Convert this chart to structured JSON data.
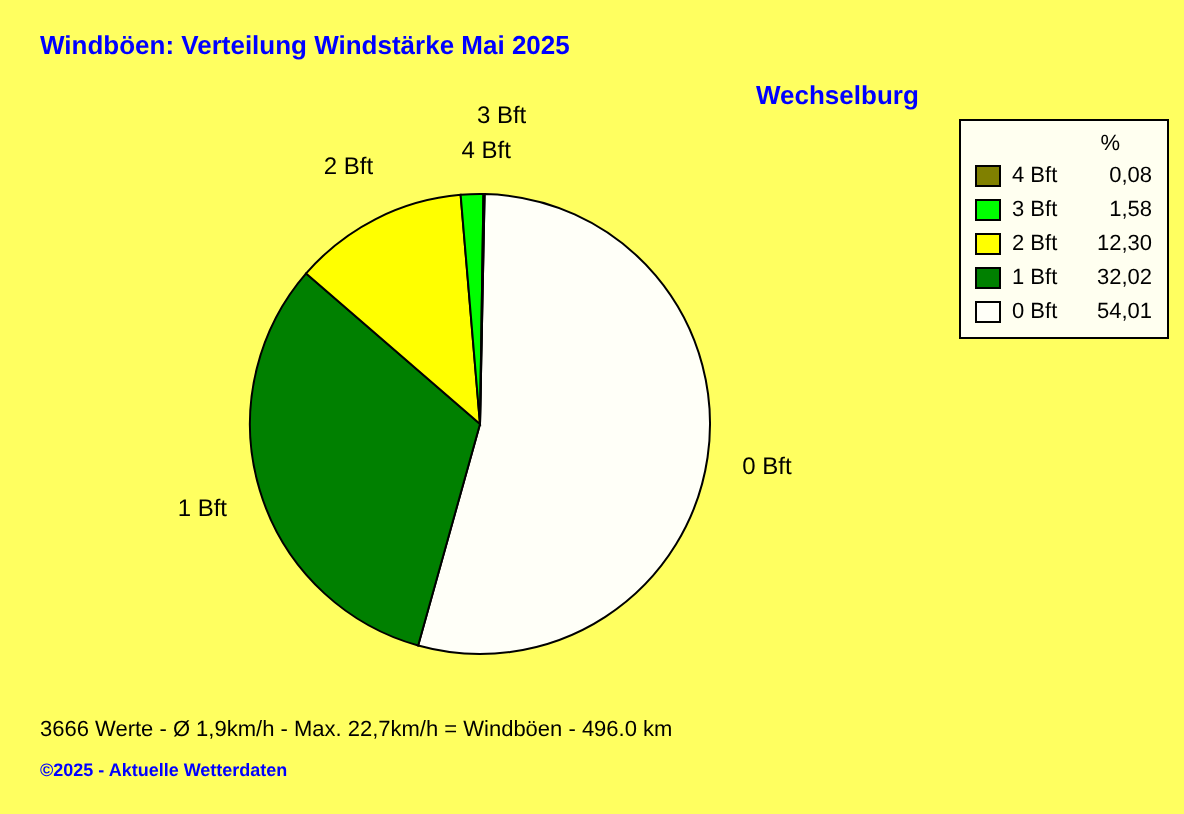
{
  "chart_data": {
    "type": "pie",
    "title": "Windböen: Verteilung Windstärke  Mai 2025",
    "subtitle": "Wechselburg",
    "legend_title": "%",
    "categories": [
      "0 Bft",
      "1 Bft",
      "2 Bft",
      "3 Bft",
      "4 Bft"
    ],
    "values": [
      54.01,
      32.02,
      12.3,
      1.58,
      0.08
    ],
    "value_labels": [
      "54,01",
      "32,02",
      "12,30",
      "1,58",
      "0,08"
    ],
    "colors": [
      "#fffff8",
      "#008000",
      "#ffff00",
      "#00ff00",
      "#808000"
    ],
    "legend": "top right",
    "annotations": [
      "3666 Werte   -   Ø 1,9km/h  -  Max. 22,7km/h = Windböen   -   496.0 km",
      "©2025  -  Aktuelle Wetterdaten"
    ]
  }
}
